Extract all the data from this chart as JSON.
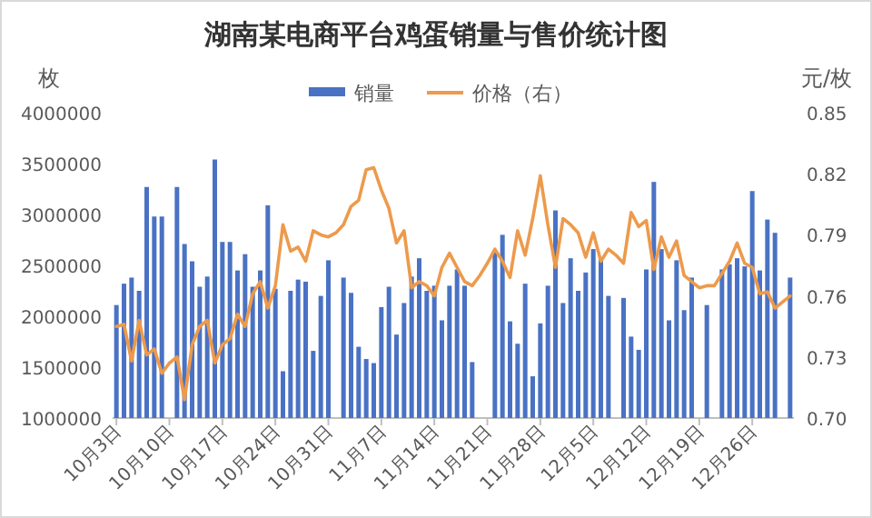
{
  "chart_data": {
    "type": "bar",
    "title": "湖南某电商平台鸡蛋销量与售价统计图",
    "ylabel": "枚",
    "y2label": "元/枚",
    "legend": "top",
    "categories": [
      "10月3日",
      null,
      null,
      null,
      null,
      null,
      null,
      "10月10日",
      null,
      null,
      null,
      null,
      null,
      null,
      "10月17日",
      null,
      null,
      null,
      null,
      null,
      null,
      "10月24日",
      null,
      null,
      null,
      null,
      null,
      null,
      "10月31日",
      null,
      null,
      null,
      null,
      null,
      null,
      "11月7日",
      null,
      null,
      null,
      null,
      null,
      null,
      "11月14日",
      null,
      null,
      null,
      null,
      null,
      null,
      "11月21日",
      null,
      null,
      null,
      null,
      null,
      null,
      "11月28日",
      null,
      null,
      null,
      null,
      null,
      null,
      "12月5日",
      null,
      null,
      null,
      null,
      null,
      null,
      "12月12日",
      null,
      null,
      null,
      null,
      null,
      null,
      "12月19日",
      null,
      null,
      null,
      null,
      null,
      null,
      "12月26日",
      null,
      null,
      null,
      null,
      null
    ],
    "ylim": [
      1000000,
      4000000
    ],
    "yticks": [
      1000000,
      1500000,
      2000000,
      2500000,
      3000000,
      3500000,
      4000000
    ],
    "y2lim": [
      0.7,
      0.85
    ],
    "y2ticks": [
      {
        "value": 0.7,
        "label": "0.70"
      },
      {
        "value": 0.73,
        "label": "0.73"
      },
      {
        "value": 0.76,
        "label": "0.76"
      },
      {
        "value": 0.79,
        "label": "0.79"
      },
      {
        "value": 0.82,
        "label": "0.82"
      },
      {
        "value": 0.85,
        "label": "0.85"
      }
    ],
    "series": [
      {
        "name": "销量",
        "color": "#4a72c4",
        "values": [
          2110000,
          2320000,
          2380000,
          2250000,
          3270000,
          2980000,
          2980000,
          null,
          3270000,
          2710000,
          2540000,
          2290000,
          2390000,
          3540000,
          2730000,
          2730000,
          2450000,
          2610000,
          2290000,
          2450000,
          3090000,
          2270000,
          1460000,
          2250000,
          2360000,
          2340000,
          1660000,
          2200000,
          2550000,
          null,
          2380000,
          2230000,
          1700000,
          1580000,
          1540000,
          2090000,
          2290000,
          1820000,
          2130000,
          2390000,
          2570000,
          2250000,
          2300000,
          1960000,
          2300000,
          2460000,
          2300000,
          1550000,
          null,
          null,
          2640000,
          2800000,
          1950000,
          1730000,
          2320000,
          1410000,
          1930000,
          2300000,
          3040000,
          2130000,
          2570000,
          2250000,
          2430000,
          2660000,
          2570000,
          2200000,
          null,
          2180000,
          1800000,
          1670000,
          2460000,
          3320000,
          2660000,
          1960000,
          2550000,
          2060000,
          2380000,
          null,
          2110000,
          null,
          2460000,
          2510000,
          2570000,
          2490000,
          3230000,
          2450000,
          2950000,
          2820000,
          null,
          2380000
        ]
      },
      {
        "name": "价格（右）",
        "type": "line",
        "axis": "y2",
        "color": "#ed9a4c",
        "values": [
          0.745,
          0.746,
          0.728,
          0.748,
          0.731,
          0.734,
          0.722,
          0.727,
          0.73,
          0.709,
          0.736,
          0.745,
          0.748,
          0.727,
          0.736,
          0.739,
          0.751,
          0.745,
          0.761,
          0.767,
          0.754,
          0.765,
          0.795,
          0.782,
          0.784,
          0.777,
          0.792,
          0.79,
          0.789,
          0.791,
          0.795,
          0.804,
          0.807,
          0.822,
          0.823,
          0.812,
          0.803,
          0.786,
          0.792,
          0.764,
          0.767,
          0.765,
          0.76,
          0.774,
          0.781,
          0.774,
          0.767,
          0.765,
          0.77,
          0.776,
          0.783,
          0.777,
          0.769,
          0.792,
          0.78,
          0.798,
          0.819,
          0.795,
          0.774,
          0.798,
          0.795,
          0.791,
          0.779,
          0.791,
          0.777,
          0.783,
          0.78,
          0.776,
          0.801,
          0.794,
          0.797,
          0.773,
          0.789,
          0.779,
          0.787,
          0.77,
          0.767,
          0.764,
          0.765,
          0.765,
          0.771,
          0.777,
          0.786,
          0.776,
          0.774,
          0.761,
          0.762,
          0.754,
          0.757,
          0.76
        ]
      }
    ]
  }
}
